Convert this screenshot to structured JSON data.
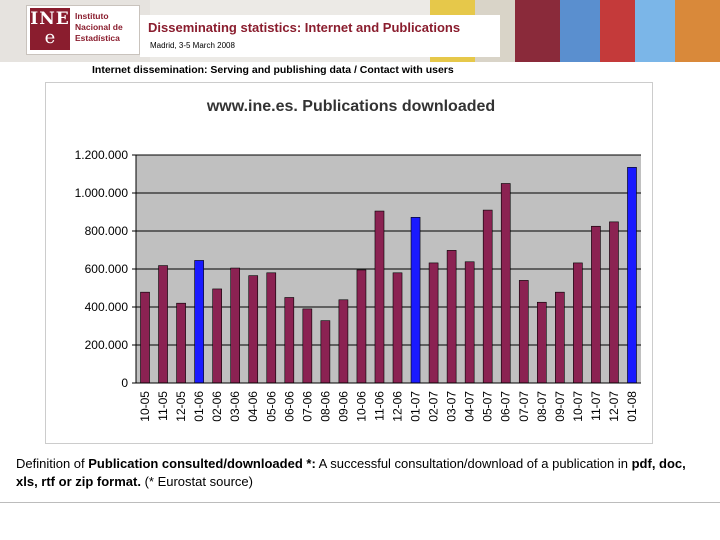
{
  "logo": {
    "mark_top": "INE",
    "mark_bottom": "e",
    "line1": "Instituto",
    "line2": "Nacional de",
    "line3": "Estadística"
  },
  "header": {
    "title": "Disseminating statistics: Internet and Publications",
    "subtitle": "Madrid, 3-5 March 2008"
  },
  "section_heading": "Internet dissemination: Serving and publishing data  /  Contact with users",
  "colors": {
    "bar_default": "#8b2252",
    "bar_highlight": "#1a1aff",
    "plot_background": "#c0c0c0",
    "brand": "#8a1d2e"
  },
  "chart_data": {
    "type": "bar",
    "title": "www.ine.es. Publications downloaded",
    "xlabel": "",
    "ylabel": "",
    "ylim": [
      0,
      1200000
    ],
    "yticks": [
      0,
      200000,
      400000,
      600000,
      800000,
      1000000,
      1200000
    ],
    "ytick_labels": [
      "0",
      "200.000",
      "400.000",
      "600.000",
      "800.000",
      "1.000.000",
      "1.200.000"
    ],
    "categories": [
      "10-05",
      "11-05",
      "12-05",
      "01-06",
      "02-06",
      "03-06",
      "04-06",
      "05-06",
      "06-06",
      "07-06",
      "08-06",
      "09-06",
      "10-06",
      "11-06",
      "12-06",
      "01-07",
      "02-07",
      "03-07",
      "04-07",
      "05-07",
      "06-07",
      "07-07",
      "08-07",
      "09-07",
      "10-07",
      "11-07",
      "12-07",
      "01-08"
    ],
    "values": [
      478000,
      618000,
      420000,
      645000,
      495000,
      605000,
      565000,
      580000,
      450000,
      390000,
      328000,
      438000,
      595000,
      905000,
      580000,
      872000,
      632000,
      698000,
      638000,
      910000,
      1050000,
      540000,
      425000,
      478000,
      632000,
      825000,
      848000,
      1135000
    ],
    "highlighted": [
      "01-06",
      "01-07",
      "01-08"
    ],
    "grid": true,
    "legend": "none"
  },
  "definition": {
    "part1": "Definition of ",
    "part2": "Publication consulted/downloaded *:",
    "part3": " A successful consultation/download of a publication in ",
    "part4": "pdf, doc, xls, rtf or zip format.",
    "part5": " (* Eurostat source)"
  }
}
